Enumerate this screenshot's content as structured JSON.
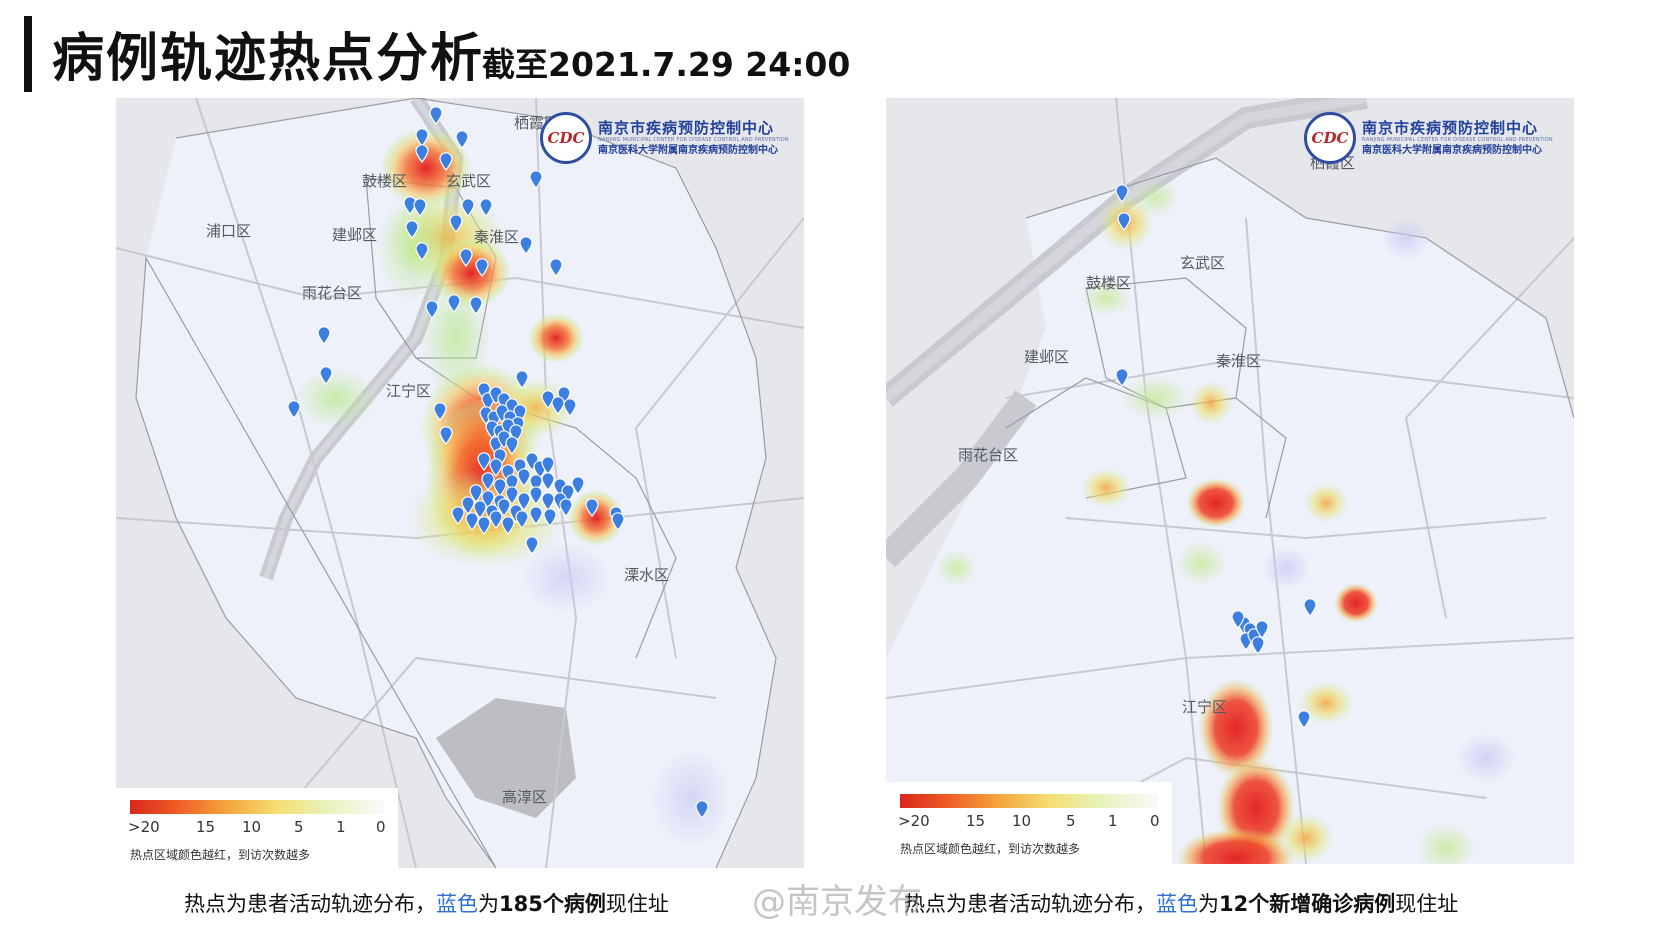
{
  "header": {
    "title": "病例轨迹热点分析",
    "subtitle": "截至2021.7.29 24:00"
  },
  "logo": {
    "emblem": "CDC",
    "name_cn": "南京市疾病预防控制中心",
    "name_en": "NANJING MUNICIPAL CENTER FOR DISEASE CONTROL AND PREVENTION",
    "sub_cn": "南京医科大学附属南京疾病预防控制中心"
  },
  "legend": {
    "ticks": [
      ">20",
      "15",
      "10",
      "5",
      "1",
      "0"
    ],
    "note": "热点区域颜色越红，到访次数越多"
  },
  "map_left": {
    "districts": [
      "栖霞区",
      "鼓楼区",
      "玄武区",
      "浦口区",
      "建邺区",
      "秦淮区",
      "雨花台区",
      "江宁区",
      "溧水区",
      "高淳区"
    ]
  },
  "map_right": {
    "districts": [
      "栖霞区",
      "玄武区",
      "鼓楼区",
      "建邺区",
      "秦淮区",
      "雨花台区",
      "江宁区"
    ]
  },
  "captions": {
    "left": {
      "part1": "热点为患者活动轨迹分布，",
      "blue": "蓝色",
      "part2": "为",
      "bold": "185个病例",
      "part3": "现住址"
    },
    "right": {
      "part1": "热点为患者活动轨迹分布，",
      "blue": "蓝色",
      "part2": "为",
      "bold": "12个新增确诊病例",
      "part3": "现住址"
    }
  },
  "watermark": "@南京发布",
  "colors": {
    "pin": "#3d7fe0",
    "heat_high": "#e31a1c",
    "heat_mid": "#f6a13a",
    "heat_low": "#c8ec8a",
    "caption_blue": "#2f6fd0",
    "logo_blue": "#22419a"
  }
}
